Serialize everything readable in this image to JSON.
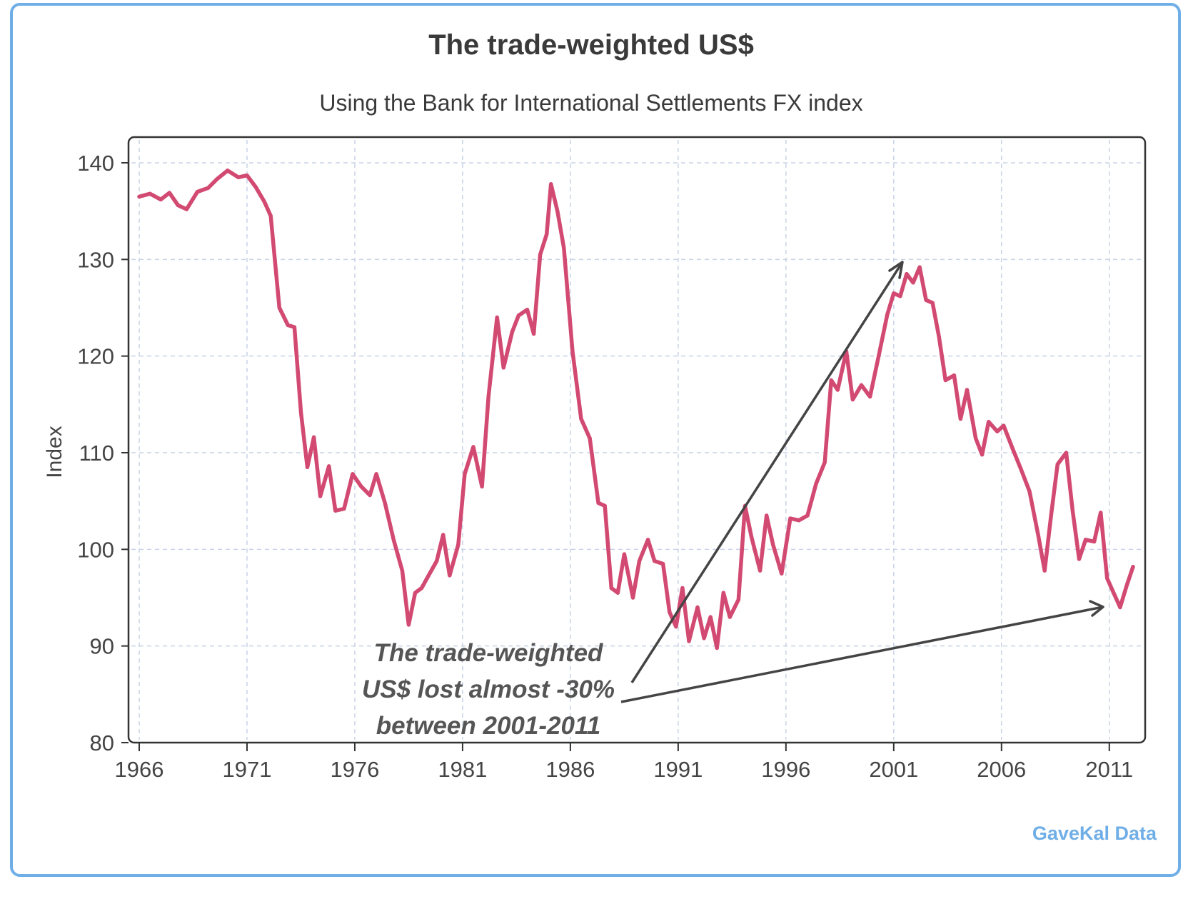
{
  "chart_data": {
    "type": "line",
    "title": "The trade-weighted US$",
    "subtitle": "Using the Bank for International Settlements FX index",
    "xlabel": "",
    "ylabel": "Index",
    "xlim": [
      1966,
      2012.2
    ],
    "ylim": [
      80,
      140
    ],
    "x_ticks": [
      "1966",
      "1971",
      "1976",
      "1981",
      "1986",
      "1991",
      "1996",
      "2001",
      "2006",
      "2011"
    ],
    "y_ticks": [
      "80",
      "90",
      "100",
      "110",
      "120",
      "130",
      "140"
    ],
    "grid": true,
    "legend": "none",
    "color": "#d24a72",
    "series": [
      {
        "x": [
          1966.0,
          1966.5,
          1967.0,
          1967.4,
          1967.8,
          1968.2,
          1968.7,
          1969.2,
          1969.6,
          1970.1,
          1970.6,
          1971.0,
          1971.4,
          1971.8,
          1972.1,
          1972.5,
          1972.9,
          1973.2,
          1973.5,
          1973.8,
          1974.1,
          1974.4,
          1974.8,
          1975.1,
          1975.5,
          1975.9,
          1976.3,
          1976.7,
          1977.0,
          1977.4,
          1977.8,
          1978.2,
          1978.5,
          1978.8,
          1979.1,
          1979.4,
          1979.8,
          1980.1,
          1980.4,
          1980.8,
          1981.1,
          1981.5,
          1981.9,
          1982.2,
          1982.6,
          1982.9,
          1983.3,
          1983.6,
          1984.0,
          1984.3,
          1984.6,
          1984.9,
          1985.1,
          1985.4,
          1985.7,
          1986.1,
          1986.5,
          1986.9,
          1987.3,
          1987.6,
          1987.9,
          1988.2,
          1988.5,
          1988.9,
          1989.2,
          1989.6,
          1989.9,
          1990.3,
          1990.6,
          1990.9,
          1991.2,
          1991.5,
          1991.9,
          1992.2,
          1992.5,
          1992.8,
          1993.1,
          1993.4,
          1993.8,
          1994.1,
          1994.4,
          1994.8,
          1995.1,
          1995.4,
          1995.8,
          1996.2,
          1996.6,
          1997.0,
          1997.4,
          1997.8,
          1998.1,
          1998.4,
          1998.8,
          1999.1,
          1999.5,
          1999.9,
          2000.3,
          2000.7,
          2001.0,
          2001.3,
          2001.6,
          2001.9,
          2002.2,
          2002.5,
          2002.8,
          2003.1,
          2003.4,
          2003.8,
          2004.1,
          2004.4,
          2004.8,
          2005.1,
          2005.4,
          2005.8,
          2006.1,
          2006.5,
          2006.9,
          2007.3,
          2007.7,
          2008.0,
          2008.3,
          2008.6,
          2009.0,
          2009.3,
          2009.6,
          2009.9,
          2010.3,
          2010.6,
          2010.9,
          2011.2,
          2011.5,
          2011.8,
          2012.1
        ],
        "y": [
          136.5,
          136.8,
          136.2,
          136.9,
          135.6,
          135.2,
          137.0,
          137.4,
          138.3,
          139.2,
          138.5,
          138.7,
          137.5,
          136.0,
          134.5,
          125.0,
          123.2,
          123.0,
          114.2,
          108.5,
          111.6,
          105.5,
          108.6,
          104.0,
          104.2,
          107.8,
          106.5,
          105.6,
          107.8,
          104.8,
          101.0,
          97.8,
          92.2,
          95.5,
          96.0,
          97.2,
          98.8,
          101.5,
          97.3,
          100.5,
          107.8,
          110.6,
          106.5,
          115.8,
          124.0,
          118.8,
          122.5,
          124.2,
          124.8,
          122.3,
          130.5,
          132.6,
          137.8,
          135.0,
          131.2,
          120.5,
          113.5,
          111.5,
          104.8,
          104.5,
          96.0,
          95.5,
          99.5,
          95.0,
          98.8,
          101.0,
          98.8,
          98.5,
          93.5,
          92.0,
          96.0,
          90.5,
          94.0,
          90.8,
          93.0,
          89.8,
          95.5,
          93.0,
          94.8,
          104.5,
          101.3,
          97.8,
          103.5,
          100.5,
          97.5,
          103.2,
          103.0,
          103.5,
          106.8,
          109.0,
          117.5,
          116.5,
          120.5,
          115.5,
          117.0,
          115.8,
          120.0,
          124.3,
          126.5,
          126.2,
          128.5,
          127.6,
          129.2,
          125.8,
          125.5,
          122.0,
          117.5,
          118.0,
          113.5,
          116.5,
          111.5,
          109.8,
          113.2,
          112.2,
          112.8,
          110.5,
          108.3,
          106.0,
          101.5,
          97.8,
          103.5,
          108.8,
          110.0,
          104.0,
          99.0,
          101.0,
          100.8,
          103.8,
          97.0,
          95.5,
          94.0,
          96.2,
          98.2
        ]
      }
    ],
    "annotation": {
      "lines": [
        "The trade-weighted",
        "US$ lost almost -30%",
        "between 2001-2011"
      ]
    },
    "source": "GaveKal Data"
  }
}
